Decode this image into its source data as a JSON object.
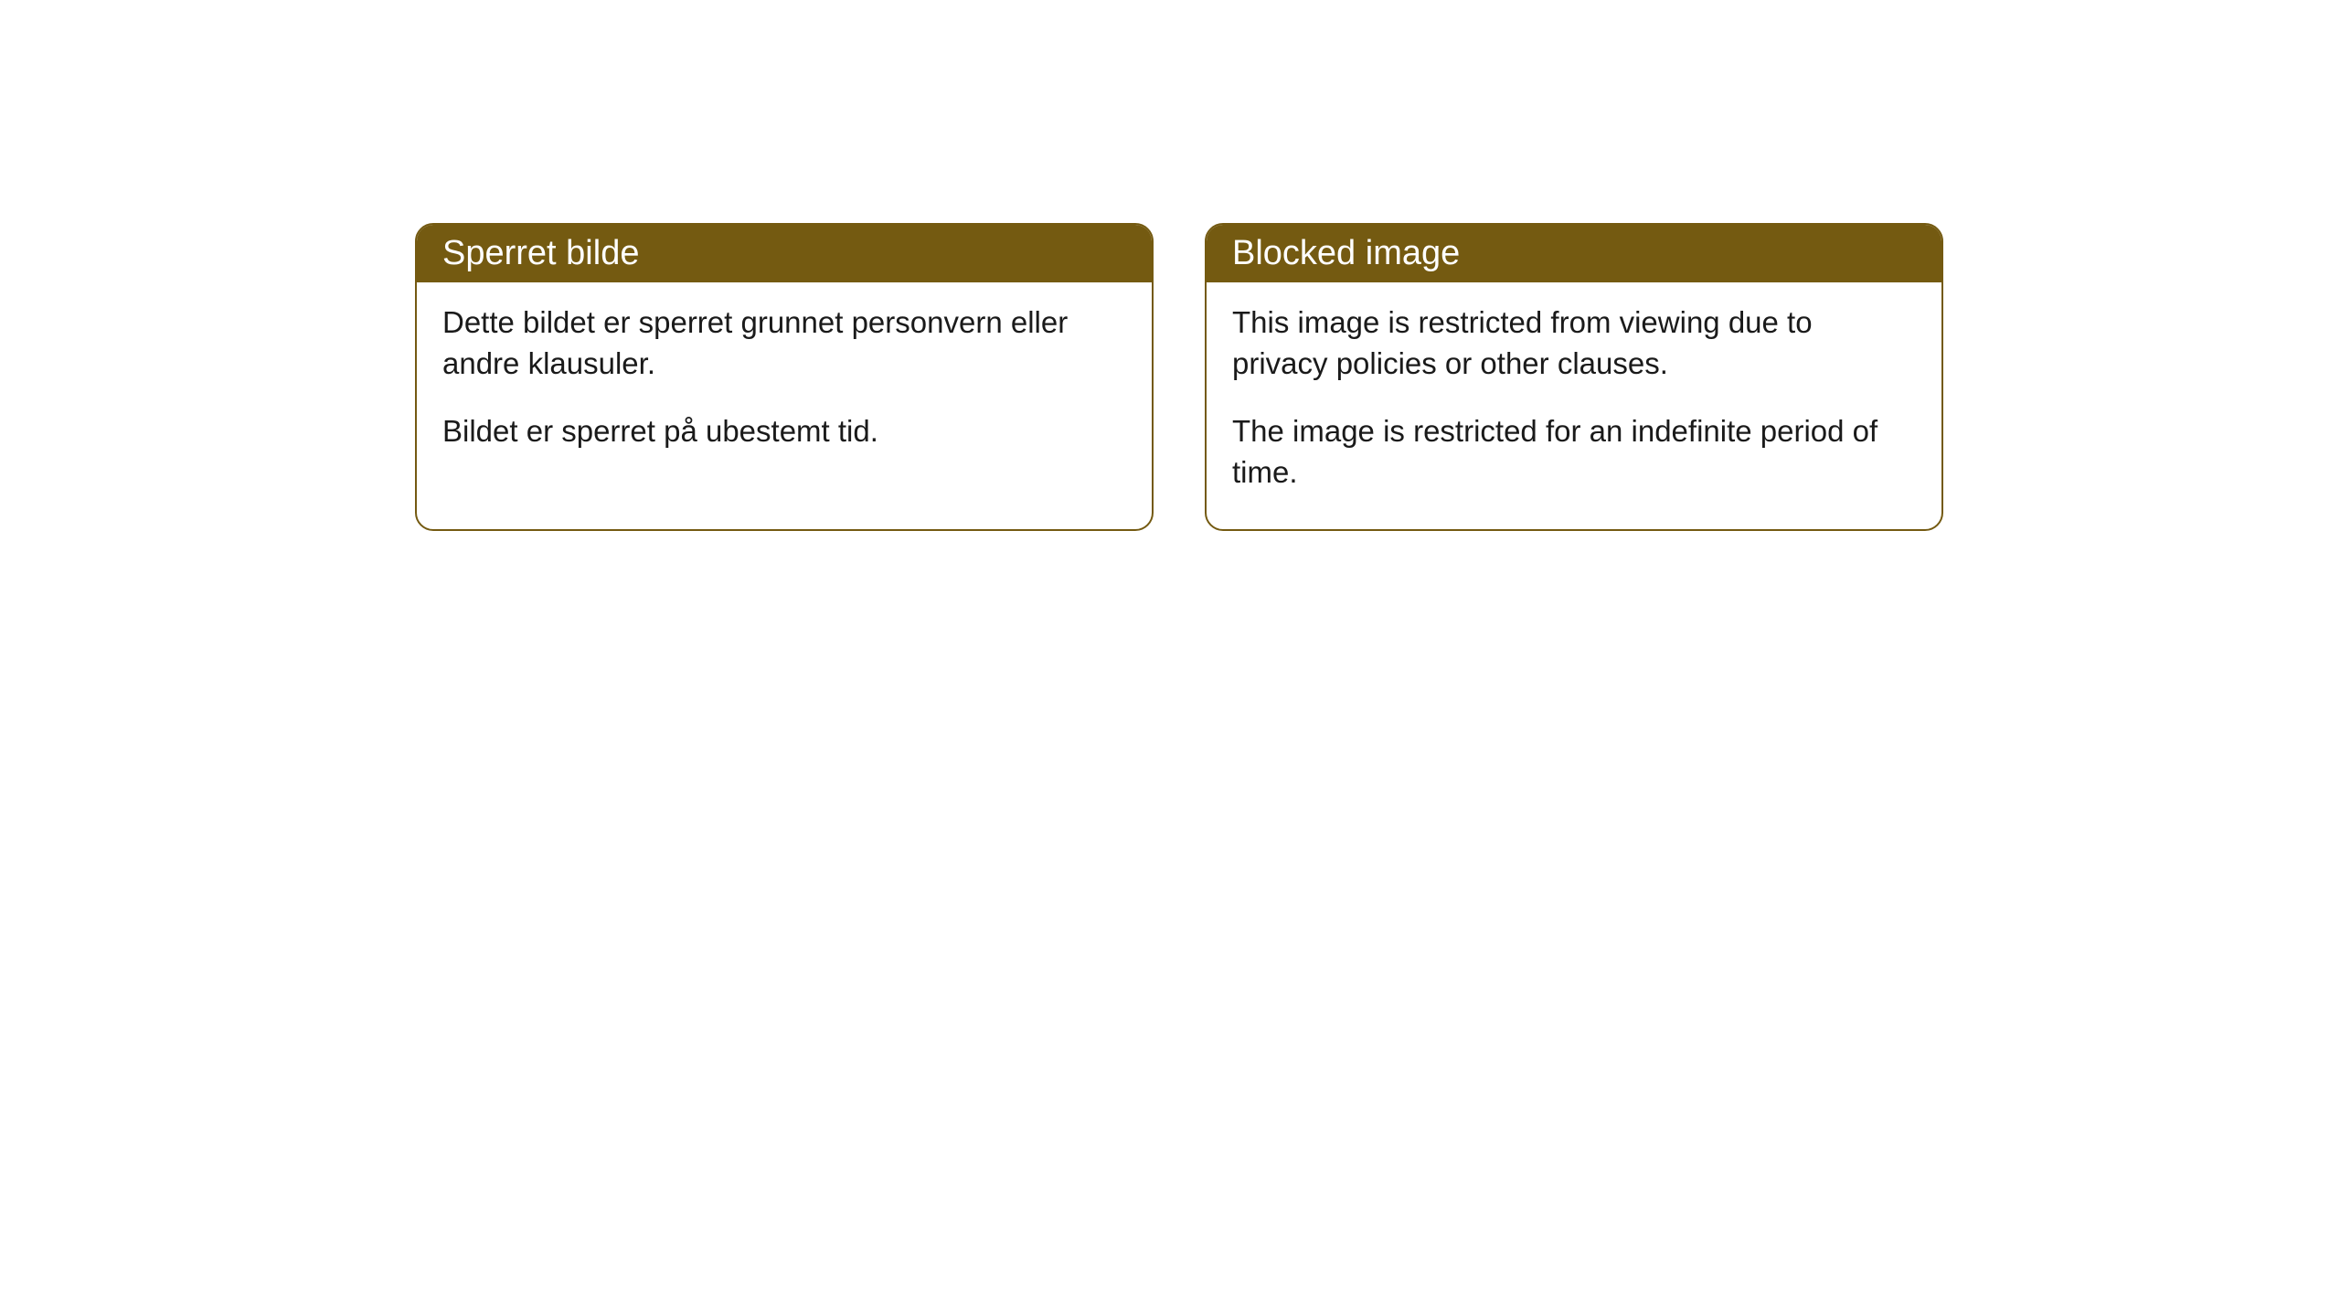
{
  "cards": [
    {
      "title": "Sperret bilde",
      "paragraph1": "Dette bildet er sperret grunnet personvern eller andre klausuler.",
      "paragraph2": "Bildet er sperret på ubestemt tid."
    },
    {
      "title": "Blocked image",
      "paragraph1": "This image is restricted from viewing due to privacy policies or other clauses.",
      "paragraph2": "The image is restricted for an indefinite period of time."
    }
  ],
  "colors": {
    "header_bg": "#745a11",
    "header_text": "#ffffff",
    "border": "#745a11",
    "body_text": "#1a1a1a",
    "card_bg": "#ffffff",
    "page_bg": "#ffffff"
  }
}
